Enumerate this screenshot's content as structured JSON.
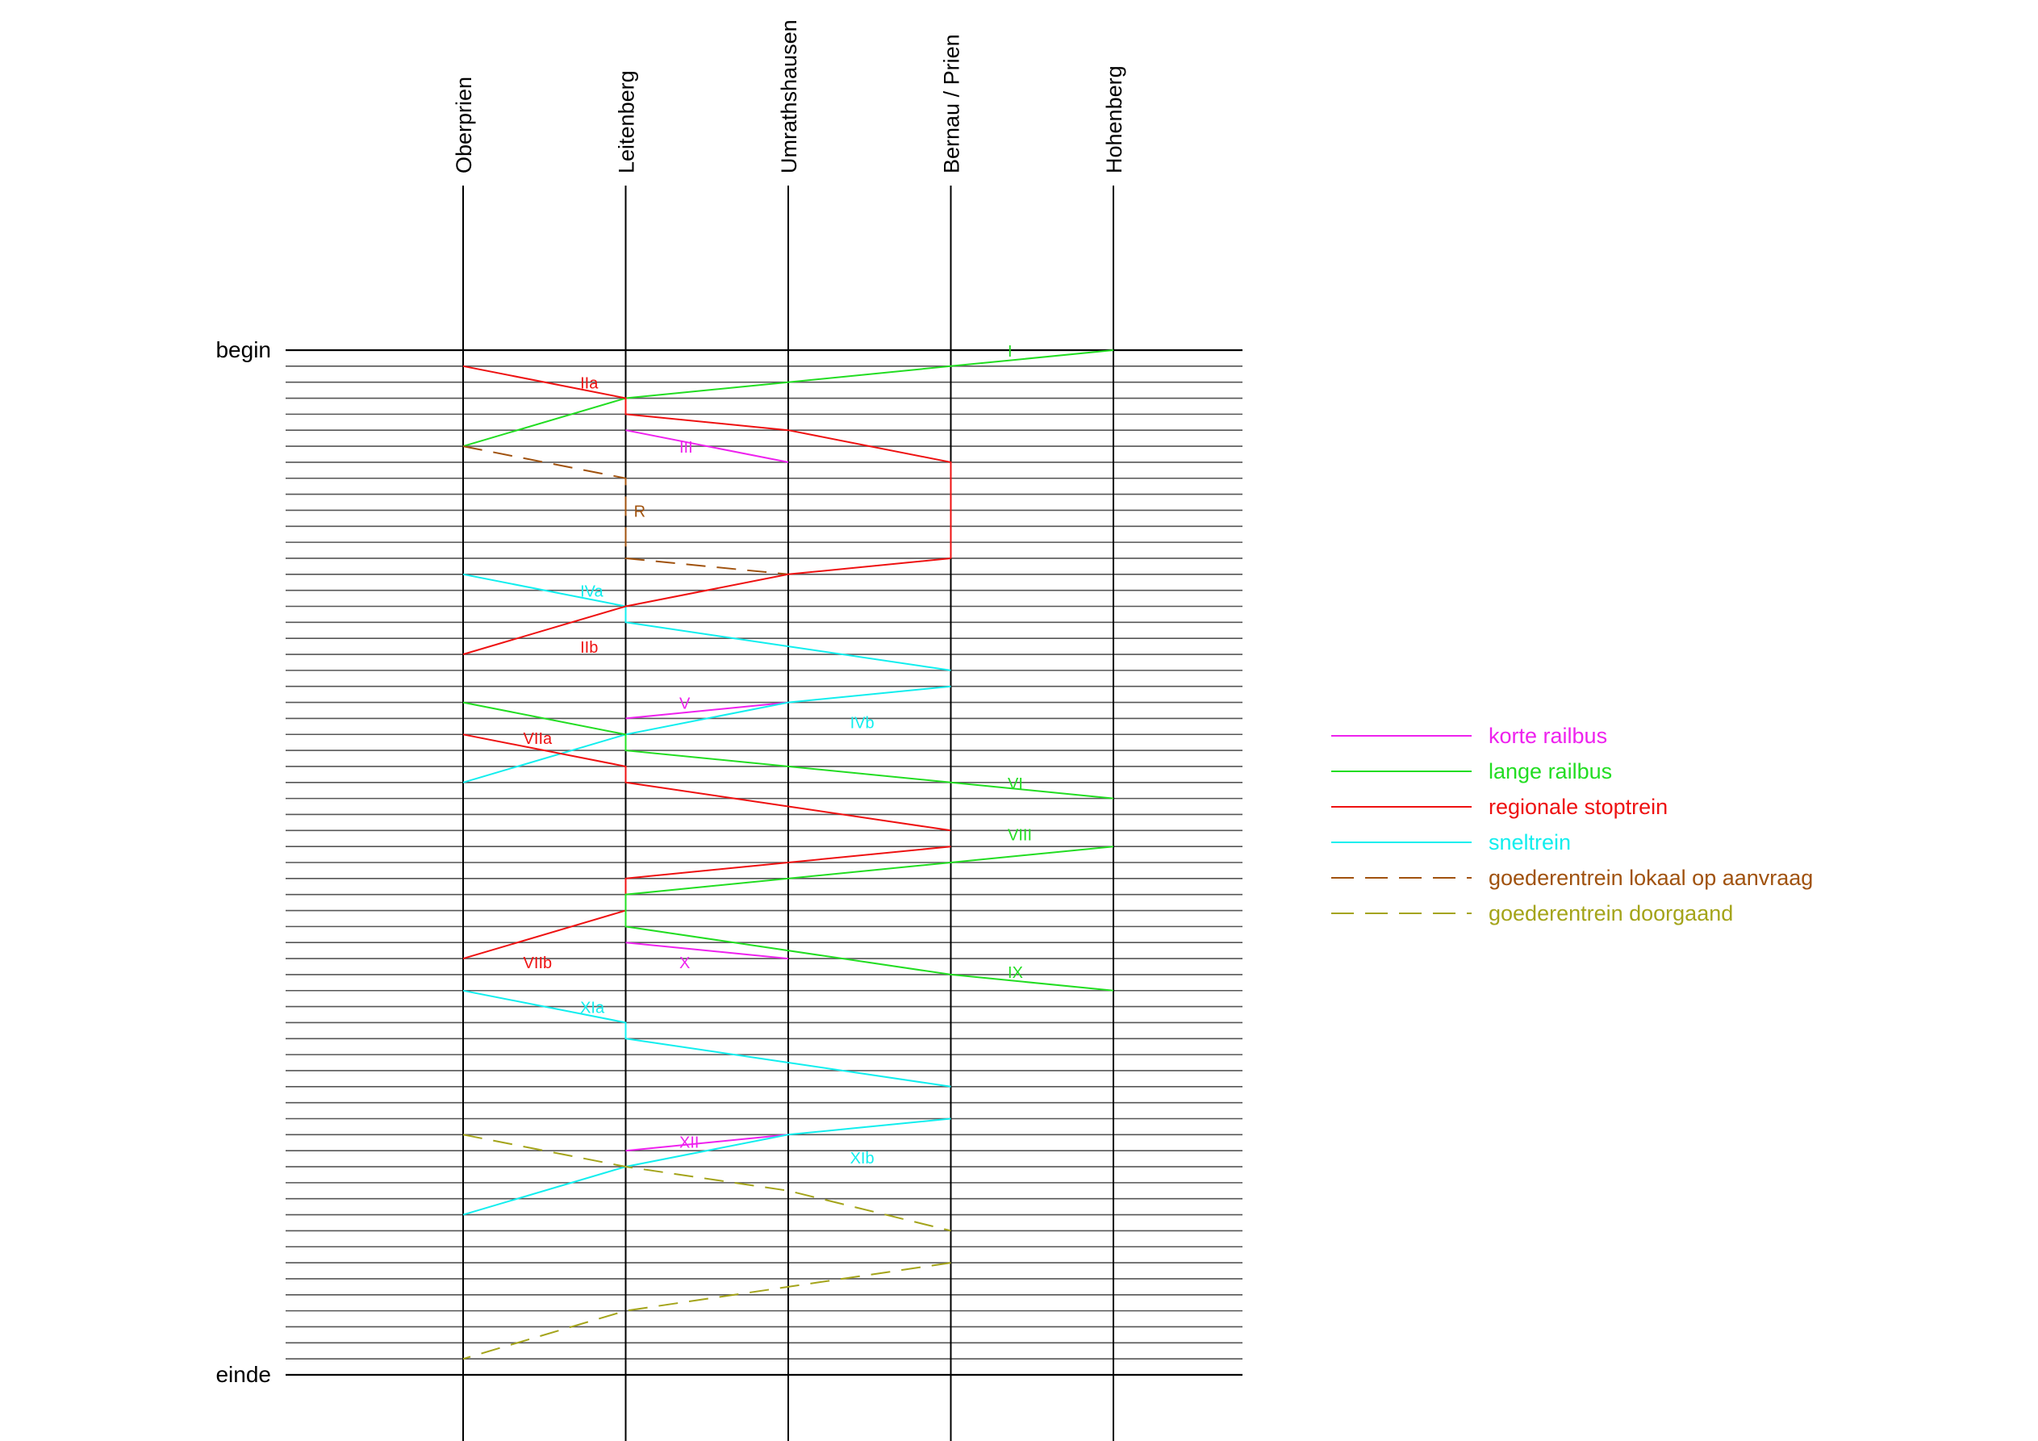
{
  "diagram": {
    "stations": [
      "Oberprien",
      "Leitenberg",
      "Umrathshausen",
      "Bernau / Prien",
      "Hohenberg"
    ],
    "time_start_label": "begin",
    "time_end_label": "einde",
    "time_steps": 64
  },
  "train_types": [
    {
      "id": "korte",
      "label": "korte railbus",
      "color": "#ee22ee",
      "dashed": false
    },
    {
      "id": "lange",
      "label": "lange railbus",
      "color": "#22dd22",
      "dashed": false
    },
    {
      "id": "regional",
      "label": "regionale stoptrein",
      "color": "#ee1111",
      "dashed": false
    },
    {
      "id": "snel",
      "label": "sneltrein",
      "color": "#11eeee",
      "dashed": false
    },
    {
      "id": "goed_lokaal",
      "label": "goederentrein lokaal op aanvraag",
      "color": "#a0520e",
      "dashed": true
    },
    {
      "id": "goed_door",
      "label": "goederentrein doorgaand",
      "color": "#a4a41a",
      "dashed": true
    }
  ],
  "paths": [
    {
      "type": "lange",
      "points": [
        [
          4,
          0
        ],
        [
          3,
          1
        ],
        [
          2,
          2
        ],
        [
          1,
          3
        ],
        [
          0,
          6
        ]
      ]
    },
    {
      "type": "regional",
      "points": [
        [
          0,
          1
        ],
        [
          1,
          3
        ],
        [
          1,
          4
        ],
        [
          2,
          5
        ],
        [
          3,
          7
        ],
        [
          3,
          13
        ]
      ]
    },
    {
      "type": "korte",
      "points": [
        [
          1,
          5
        ],
        [
          2,
          7
        ]
      ]
    },
    {
      "type": "goed_lokaal",
      "points": [
        [
          0,
          6
        ],
        [
          1,
          8
        ],
        [
          1,
          13
        ],
        [
          2,
          14
        ]
      ]
    },
    {
      "type": "snel",
      "points": [
        [
          0,
          14
        ],
        [
          1,
          16
        ],
        [
          1,
          17
        ],
        [
          2,
          18.5
        ],
        [
          3,
          20
        ]
      ]
    },
    {
      "type": "regional",
      "points": [
        [
          3,
          13
        ],
        [
          2,
          14
        ],
        [
          1,
          16
        ],
        [
          0,
          19
        ]
      ]
    },
    {
      "type": "korte",
      "points": [
        [
          1,
          23
        ],
        [
          2,
          22
        ]
      ]
    },
    {
      "type": "snel",
      "points": [
        [
          3,
          21
        ],
        [
          2,
          22
        ],
        [
          1,
          24
        ],
        [
          0,
          27
        ]
      ]
    },
    {
      "type": "lange",
      "points": [
        [
          0,
          22
        ],
        [
          1,
          24
        ],
        [
          1,
          25
        ],
        [
          3,
          27
        ],
        [
          4,
          28
        ]
      ]
    },
    {
      "type": "regional",
      "points": [
        [
          0,
          24
        ],
        [
          1,
          26
        ],
        [
          1,
          27
        ],
        [
          2,
          28.5
        ],
        [
          3,
          30
        ]
      ]
    },
    {
      "type": "regional",
      "points": [
        [
          3,
          31
        ],
        [
          2,
          32
        ],
        [
          1,
          33
        ],
        [
          1,
          35
        ],
        [
          0,
          38
        ]
      ]
    },
    {
      "type": "lange",
      "points": [
        [
          4,
          31
        ],
        [
          3,
          32
        ],
        [
          1,
          34
        ],
        [
          1,
          36
        ],
        [
          3,
          39
        ],
        [
          4,
          40
        ]
      ]
    },
    {
      "type": "korte",
      "points": [
        [
          1,
          37
        ],
        [
          2,
          38
        ]
      ]
    },
    {
      "type": "snel",
      "points": [
        [
          0,
          40
        ],
        [
          1,
          42
        ],
        [
          1,
          43
        ],
        [
          2,
          44.5
        ],
        [
          3,
          46
        ]
      ]
    },
    {
      "type": "korte",
      "points": [
        [
          1,
          50
        ],
        [
          2,
          49
        ]
      ]
    },
    {
      "type": "snel",
      "points": [
        [
          3,
          48
        ],
        [
          2,
          49
        ],
        [
          1,
          51
        ],
        [
          0,
          54
        ]
      ]
    },
    {
      "type": "goed_door",
      "points": [
        [
          0,
          49
        ],
        [
          1,
          51
        ],
        [
          2,
          52.5
        ],
        [
          3,
          55
        ]
      ]
    },
    {
      "type": "goed_door",
      "points": [
        [
          3,
          57
        ],
        [
          2,
          58.5
        ],
        [
          1,
          60
        ],
        [
          0,
          63
        ]
      ]
    }
  ],
  "train_labels": [
    {
      "text": "I",
      "color": "lange",
      "x": 3.35,
      "t": 0
    },
    {
      "text": "IIa",
      "color": "regional",
      "x": 0.72,
      "t": 2
    },
    {
      "text": "III",
      "color": "korte",
      "x": 1.33,
      "t": 6
    },
    {
      "text": "R",
      "color": "goed_lokaal",
      "x": 1.05,
      "t": 10
    },
    {
      "text": "IVa",
      "color": "snel",
      "x": 0.72,
      "t": 15
    },
    {
      "text": "IIb",
      "color": "regional",
      "x": 0.72,
      "t": 18.5
    },
    {
      "text": "V",
      "color": "korte",
      "x": 1.33,
      "t": 22
    },
    {
      "text": "IVb",
      "color": "snel",
      "x": 2.38,
      "t": 23.2
    },
    {
      "text": "VIIa",
      "color": "regional",
      "x": 0.37,
      "t": 24.2
    },
    {
      "text": "VI",
      "color": "lange",
      "x": 3.35,
      "t": 27
    },
    {
      "text": "VIII",
      "color": "lange",
      "x": 3.35,
      "t": 30.2
    },
    {
      "text": "VIIb",
      "color": "regional",
      "x": 0.37,
      "t": 38.2
    },
    {
      "text": "X",
      "color": "korte",
      "x": 1.33,
      "t": 38.2
    },
    {
      "text": "IX",
      "color": "lange",
      "x": 3.35,
      "t": 38.8
    },
    {
      "text": "XIa",
      "color": "snel",
      "x": 0.72,
      "t": 41
    },
    {
      "text": "XII",
      "color": "korte",
      "x": 1.33,
      "t": 49.4
    },
    {
      "text": "XIb",
      "color": "snel",
      "x": 2.38,
      "t": 50.4
    }
  ]
}
